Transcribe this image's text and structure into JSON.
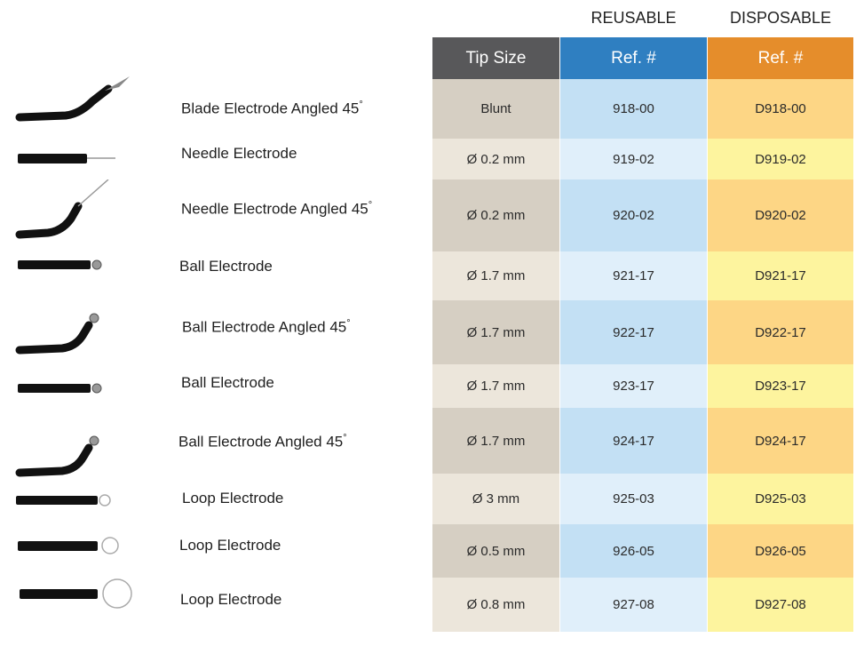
{
  "column_groups": {
    "reusable": "REUSABLE",
    "disposable": "DISPOSABLE"
  },
  "headers": {
    "tip_size": "Tip Size",
    "reusable_ref": "Ref. #",
    "disposable_ref": "Ref. #"
  },
  "rows": [
    {
      "name": "Blade Electrode Angled 45",
      "sup": "°",
      "tip": "Blunt",
      "reusable": "918-00",
      "disposable": "D918-00",
      "icon": "blade-angled-electrode-icon"
    },
    {
      "name": "Needle Electrode",
      "sup": "",
      "tip": "Ø 0.2 mm",
      "reusable": "919-02",
      "disposable": "D919-02",
      "icon": "needle-electrode-icon"
    },
    {
      "name": "Needle Electrode Angled 45",
      "sup": "°",
      "tip": "Ø 0.2 mm",
      "reusable": "920-02",
      "disposable": "D920-02",
      "icon": "needle-angled-electrode-icon"
    },
    {
      "name": "Ball Electrode",
      "sup": "",
      "tip": "Ø 1.7 mm",
      "reusable": "921-17",
      "disposable": "D921-17",
      "icon": "ball-electrode-icon"
    },
    {
      "name": "Ball Electrode Angled 45",
      "sup": "°",
      "tip": "Ø 1.7 mm",
      "reusable": "922-17",
      "disposable": "D922-17",
      "icon": "ball-angled-electrode-icon"
    },
    {
      "name": "Ball Electrode",
      "sup": "",
      "tip": "Ø 1.7 mm",
      "reusable": "923-17",
      "disposable": "D923-17",
      "icon": "ball-electrode-icon"
    },
    {
      "name": "Ball Electrode Angled 45",
      "sup": "°",
      "tip": "Ø 1.7 mm",
      "reusable": "924-17",
      "disposable": "D924-17",
      "icon": "ball-angled-electrode-icon"
    },
    {
      "name": "Loop Electrode",
      "sup": "",
      "tip": "Ø 3 mm",
      "reusable": "925-03",
      "disposable": "D925-03",
      "icon": "loop-electrode-small-icon"
    },
    {
      "name": "Loop Electrode",
      "sup": "",
      "tip": "Ø 0.5 mm",
      "reusable": "926-05",
      "disposable": "D926-05",
      "icon": "loop-electrode-medium-icon"
    },
    {
      "name": "Loop Electrode",
      "sup": "",
      "tip": "Ø 0.8 mm",
      "reusable": "927-08",
      "disposable": "D927-08",
      "icon": "loop-electrode-large-icon"
    }
  ],
  "colors": {
    "tip_header": "#58585a",
    "reusable_header": "#2f7fc1",
    "disposable_header": "#e58d2b",
    "tip_dark": "#d6cfc3",
    "tip_light": "#ece6db",
    "reusable_dark": "#c3e0f4",
    "reusable_light": "#e0effa",
    "disposable_dark": "#fdd685",
    "disposable_light": "#fdf49e"
  }
}
